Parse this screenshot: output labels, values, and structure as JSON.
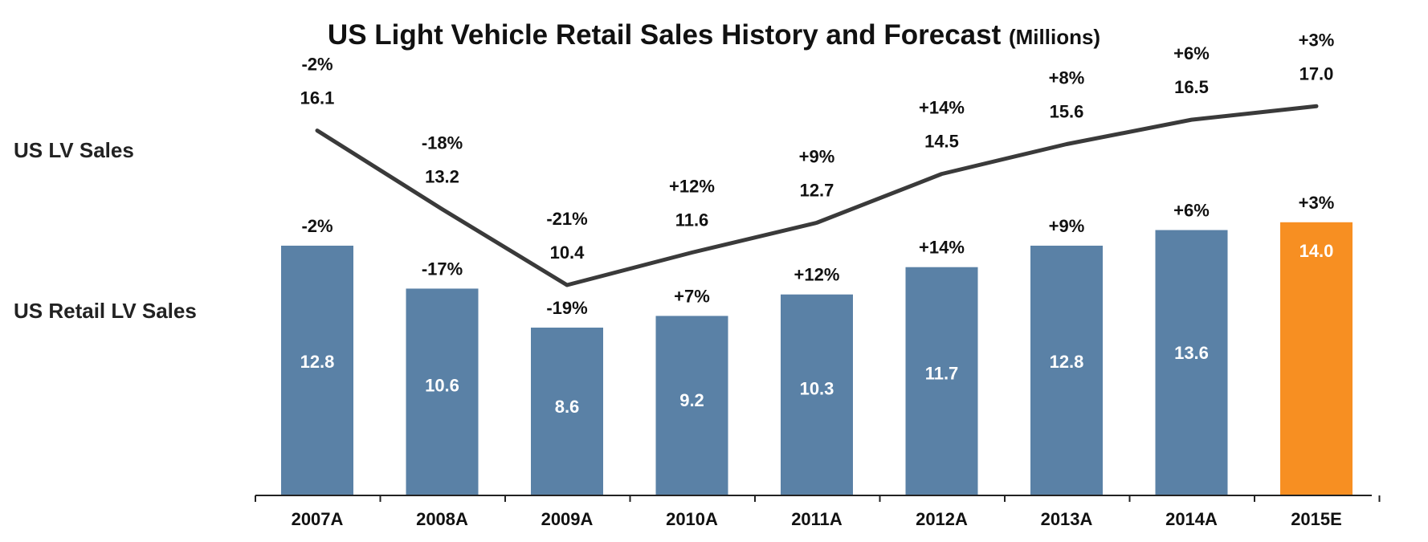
{
  "chart_data": {
    "type": "bar",
    "title": "US Light Vehicle Retail Sales History and Forecast",
    "title_unit": "(Millions)",
    "categories": [
      "2007A",
      "2008A",
      "2009A",
      "2010A",
      "2011A",
      "2012A",
      "2013A",
      "2014A",
      "2015E"
    ],
    "series": [
      {
        "name": "US LV Sales",
        "type": "line",
        "values": [
          16.1,
          13.2,
          10.4,
          11.6,
          12.7,
          14.5,
          15.6,
          16.5,
          17.0
        ],
        "value_labels": [
          "16.1",
          "13.2",
          "10.4",
          "11.6",
          "12.7",
          "14.5",
          "15.6",
          "16.5",
          "17.0"
        ],
        "changes": [
          "-2%",
          "-18%",
          "-21%",
          "+12%",
          "+9%",
          "+14%",
          "+8%",
          "+6%",
          "+3%"
        ],
        "color": "#3a3a3a"
      },
      {
        "name": "US Retail LV Sales",
        "type": "bar",
        "values": [
          12.8,
          10.6,
          8.6,
          9.2,
          10.3,
          11.7,
          12.8,
          13.6,
          14.0
        ],
        "value_labels": [
          "12.8",
          "10.6",
          "8.6",
          "9.2",
          "10.3",
          "11.7",
          "12.8",
          "13.6",
          "14.0"
        ],
        "changes": [
          "-2%",
          "-17%",
          "-19%",
          "+7%",
          "+12%",
          "+14%",
          "+9%",
          "+6%",
          "+3%"
        ],
        "color": "#5a81a6",
        "forecast_color": "#f78f22"
      }
    ],
    "forecast_category": "2015E",
    "grid": false,
    "legend": "left-side row labels"
  }
}
